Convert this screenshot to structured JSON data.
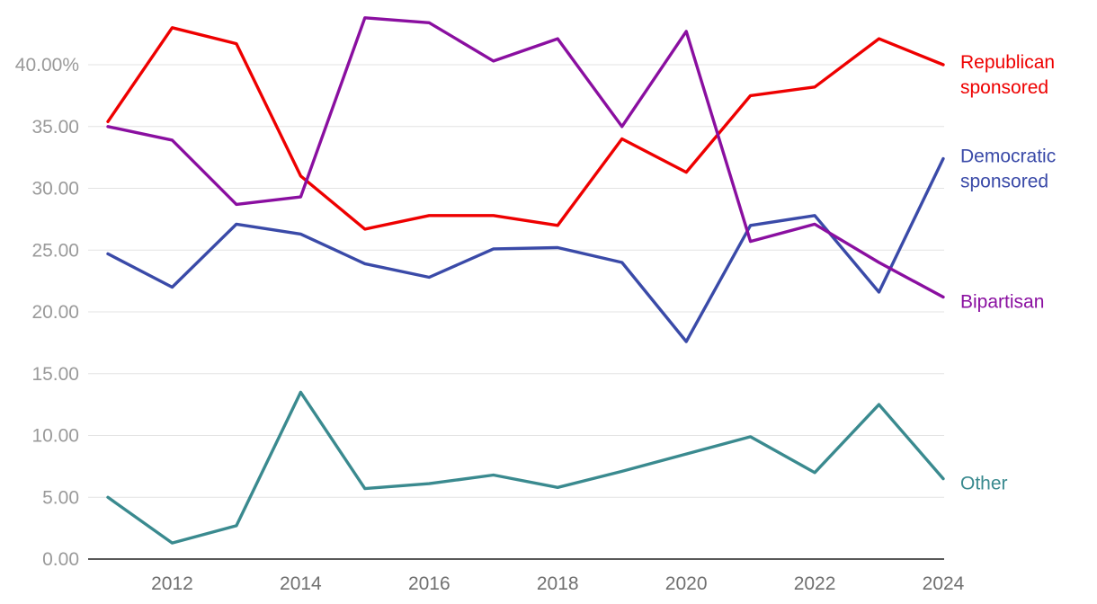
{
  "chart_data": {
    "type": "line",
    "title": "",
    "xlabel": "",
    "ylabel": "",
    "x": [
      2011,
      2012,
      2013,
      2014,
      2015,
      2016,
      2017,
      2018,
      2019,
      2020,
      2021,
      2022,
      2023,
      2024
    ],
    "x_ticks": [
      "2012",
      "2014",
      "2016",
      "2018",
      "2020",
      "2022",
      "2024"
    ],
    "y_ticks": [
      "0.00",
      "5.00",
      "10.00",
      "15.00",
      "20.00",
      "25.00",
      "30.00",
      "35.00",
      "40.00%"
    ],
    "ylim": [
      0,
      40
    ],
    "grid": "horizontal",
    "legend": "end-of-line labels",
    "series": [
      {
        "name": "Republican sponsored",
        "label_lines": [
          "Republican",
          "sponsored"
        ],
        "color": "#ee0000",
        "values": [
          35.4,
          43.0,
          41.7,
          31.0,
          26.7,
          27.8,
          27.8,
          27.0,
          34.0,
          31.3,
          37.5,
          38.2,
          42.1,
          40.0
        ]
      },
      {
        "name": "Democratic sponsored",
        "label_lines": [
          "Democratic",
          "sponsored"
        ],
        "color": "#3a4aa8",
        "values": [
          24.7,
          22.0,
          27.1,
          26.3,
          23.9,
          22.8,
          25.1,
          25.2,
          24.0,
          17.6,
          27.0,
          27.8,
          21.6,
          32.4
        ]
      },
      {
        "name": "Bipartisan",
        "label_lines": [
          "Bipartisan"
        ],
        "color": "#8a0fa0",
        "values": [
          35.0,
          33.9,
          28.7,
          29.3,
          43.8,
          43.4,
          40.3,
          42.1,
          35.0,
          42.7,
          25.7,
          27.1,
          24.0,
          21.2
        ]
      },
      {
        "name": "Other",
        "label_lines": [
          "Other"
        ],
        "color": "#3a8a8f",
        "values": [
          5.0,
          1.3,
          2.7,
          13.5,
          5.7,
          6.1,
          6.8,
          5.8,
          7.1,
          8.5,
          9.9,
          7.0,
          12.5,
          6.5
        ]
      }
    ]
  }
}
